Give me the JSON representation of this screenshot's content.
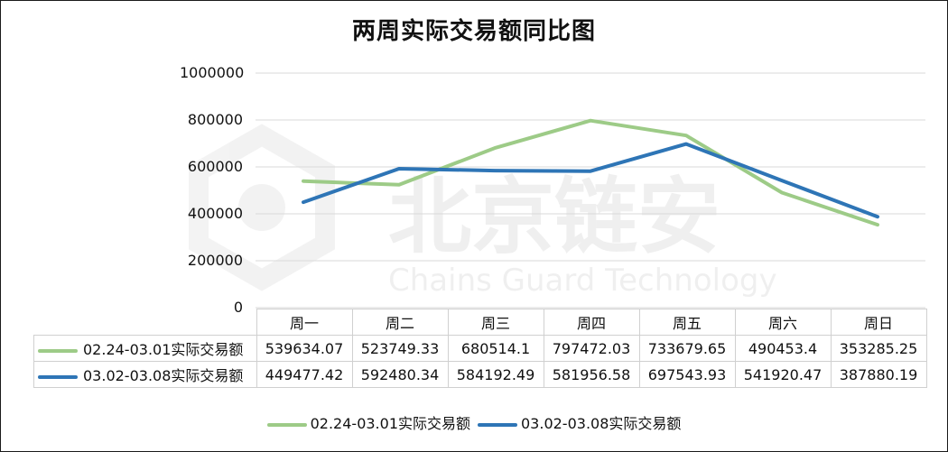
{
  "chart_data": {
    "type": "line",
    "title": "两周实际交易额同比图",
    "categories": [
      "周一",
      "周二",
      "周三",
      "周四",
      "周五",
      "周六",
      "周日"
    ],
    "ylim": [
      0,
      1000000
    ],
    "yticks": [
      "0",
      "200000",
      "400000",
      "600000",
      "800000",
      "1000000"
    ],
    "grid": true,
    "legend_position": "bottom",
    "series": [
      {
        "name": "02.24-03.01实际交易额",
        "color": "#9dcb87",
        "values": [
          539634.07,
          523749.33,
          680514.1,
          797472.03,
          733679.65,
          490453.4,
          353285.25
        ],
        "labels": [
          "539634.07",
          "523749.33",
          "680514.1",
          "797472.03",
          "733679.65",
          "490453.4",
          "353285.25"
        ]
      },
      {
        "name": "03.02-03.08实际交易额",
        "color": "#2e75b6",
        "values": [
          449477.42,
          592480.34,
          584192.49,
          581956.58,
          697543.93,
          541920.47,
          387880.19
        ],
        "labels": [
          "449477.42",
          "592480.34",
          "584192.49",
          "581956.58",
          "697543.93",
          "541920.47",
          "387880.19"
        ]
      }
    ]
  },
  "watermark": {
    "text_cn": "北京链安",
    "text_en": "Chains Guard Technology"
  }
}
